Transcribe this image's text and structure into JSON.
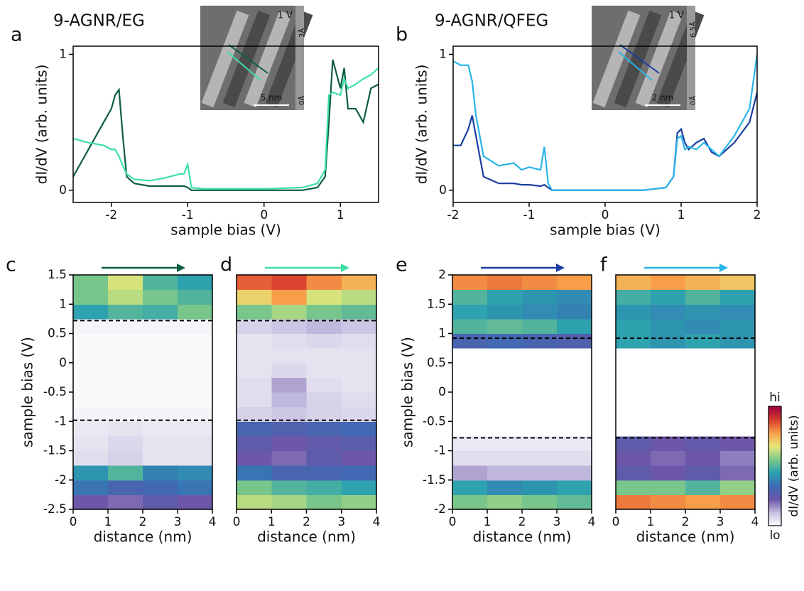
{
  "chart_data": [
    {
      "type": "line",
      "panel": "a",
      "title": "9-AGNR/EG",
      "xlabel": "sample bias (V)",
      "ylabel": "dI/dV (arb. units)",
      "inset_texts": {
        "bias": "1 V",
        "scale": "5 nm",
        "max": "3Å",
        "min": "0Å"
      },
      "x": [
        -2.5,
        -2.3,
        -2.1,
        -2.0,
        -1.95,
        -1.9,
        -1.85,
        -1.8,
        -1.7,
        -1.5,
        -1.3,
        -1.1,
        -1.05,
        -1.0,
        -0.95,
        -0.8,
        -0.5,
        0,
        0.5,
        0.7,
        0.8,
        0.85,
        0.9,
        1.0,
        1.05,
        1.1,
        1.2,
        1.3,
        1.4,
        1.5
      ],
      "series": [
        {
          "color": "#0d5c45",
          "values": [
            0.1,
            0.3,
            0.5,
            0.6,
            0.7,
            0.74,
            0.4,
            0.1,
            0.05,
            0.03,
            0.03,
            0.03,
            0.03,
            0.02,
            0.0,
            0.0,
            0.0,
            0.0,
            0.0,
            0.02,
            0.1,
            0.5,
            0.96,
            0.75,
            0.9,
            0.6,
            0.6,
            0.5,
            0.75,
            0.78
          ]
        },
        {
          "color": "#3ee0a4",
          "values": [
            0.38,
            0.35,
            0.33,
            0.3,
            0.3,
            0.25,
            0.18,
            0.12,
            0.08,
            0.07,
            0.09,
            0.12,
            0.12,
            0.19,
            0.02,
            0.01,
            0.01,
            0.01,
            0.02,
            0.05,
            0.15,
            0.7,
            0.72,
            0.7,
            0.82,
            0.75,
            0.78,
            0.82,
            0.85,
            0.9
          ]
        }
      ],
      "xlim": [
        -2.5,
        1.5
      ],
      "ylim": [
        -0.09,
        1.06
      ],
      "xticks": [
        -2,
        -1,
        0,
        1
      ],
      "yticks": [
        0,
        1
      ]
    },
    {
      "type": "line",
      "panel": "b",
      "title": "9-AGNR/QFEG",
      "xlabel": "sample bias (V)",
      "ylabel": "dI/dV (arb. units)",
      "inset_texts": {
        "bias": "1 V",
        "scale": "2 nm",
        "max": "6.5Å",
        "min": "0Å"
      },
      "x": [
        -2,
        -1.9,
        -1.8,
        -1.75,
        -1.7,
        -1.6,
        -1.4,
        -1.2,
        -1.1,
        -1.0,
        -0.85,
        -0.8,
        -0.75,
        -0.7,
        -0.5,
        0,
        0.5,
        0.8,
        0.9,
        0.95,
        1.0,
        1.05,
        1.1,
        1.2,
        1.3,
        1.4,
        1.5,
        1.7,
        1.9,
        2.0
      ],
      "series": [
        {
          "color": "#1a3fa0",
          "values": [
            0.33,
            0.33,
            0.45,
            0.55,
            0.4,
            0.1,
            0.05,
            0.05,
            0.04,
            0.04,
            0.03,
            0.04,
            0.02,
            0.0,
            0.0,
            0.0,
            0.0,
            0.02,
            0.1,
            0.42,
            0.45,
            0.35,
            0.3,
            0.35,
            0.38,
            0.28,
            0.25,
            0.35,
            0.5,
            0.72
          ]
        },
        {
          "color": "#2ab4e8",
          "values": [
            0.95,
            0.92,
            0.92,
            0.8,
            0.55,
            0.25,
            0.18,
            0.2,
            0.15,
            0.17,
            0.15,
            0.32,
            0.05,
            0.0,
            0.0,
            0.0,
            0.0,
            0.02,
            0.1,
            0.38,
            0.4,
            0.3,
            0.32,
            0.3,
            0.35,
            0.3,
            0.25,
            0.4,
            0.6,
            1.0
          ]
        }
      ],
      "xlim": [
        -2,
        2
      ],
      "ylim": [
        -0.09,
        1.06
      ],
      "xticks": [
        -2,
        -1,
        0,
        1,
        2
      ],
      "yticks": [
        0,
        1
      ]
    },
    {
      "type": "heatmap",
      "panel": "c",
      "xlabel": "distance (nm)",
      "ylabel": "sample bias (V)",
      "arrow_color": "#0d5c45",
      "xbins": [
        0,
        1,
        2,
        3,
        4
      ],
      "ybins": [
        -2.5,
        -2.25,
        -2,
        -1.75,
        -1.5,
        -1.25,
        -1,
        -0.75,
        -0.5,
        -0.25,
        0,
        0.25,
        0.5,
        0.75,
        1,
        1.25,
        1.5
      ],
      "z": [
        [
          0.22,
          0.2,
          0.25,
          0.22
        ],
        [
          0.35,
          0.3,
          0.32,
          0.35
        ],
        [
          0.42,
          0.5,
          0.38,
          0.4
        ],
        [
          0.06,
          0.08,
          0.05,
          0.05
        ],
        [
          0.05,
          0.07,
          0.05,
          0.05
        ],
        [
          0.04,
          0.05,
          0.04,
          0.04
        ],
        [
          0.02,
          0.02,
          0.02,
          0.02
        ],
        [
          0.01,
          0.01,
          0.01,
          0.01
        ],
        [
          0.01,
          0.01,
          0.01,
          0.01
        ],
        [
          0.01,
          0.01,
          0.01,
          0.01
        ],
        [
          0.01,
          0.01,
          0.01,
          0.01
        ],
        [
          0.01,
          0.01,
          0.01,
          0.01
        ],
        [
          0.02,
          0.02,
          0.02,
          0.02
        ],
        [
          0.45,
          0.5,
          0.48,
          0.55
        ],
        [
          0.55,
          0.62,
          0.55,
          0.5
        ],
        [
          0.55,
          0.65,
          0.5,
          0.45
        ]
      ],
      "hlines": [
        0.72,
        -0.98
      ],
      "xlim": [
        0,
        4
      ],
      "ylim": [
        -2.5,
        1.5
      ],
      "xticks": [
        0,
        1,
        2,
        3,
        4
      ],
      "yticks": [
        -2.5,
        -2,
        -1.5,
        -1,
        -0.5,
        0,
        0.5,
        1,
        1.5
      ]
    },
    {
      "type": "heatmap",
      "panel": "d",
      "xlabel": "distance (nm)",
      "arrow_color": "#3ee0a4",
      "xbins": [
        0,
        1,
        2,
        3,
        4
      ],
      "ybins": [
        -2.5,
        -2.25,
        -2,
        -1.75,
        -1.5,
        -1.25,
        -1,
        -0.75,
        -0.5,
        -0.25,
        0,
        0.25,
        0.5,
        0.75,
        1,
        1.25,
        1.5
      ],
      "z": [
        [
          0.62,
          0.6,
          0.55,
          0.58
        ],
        [
          0.55,
          0.5,
          0.48,
          0.45
        ],
        [
          0.35,
          0.3,
          0.3,
          0.32
        ],
        [
          0.22,
          0.2,
          0.25,
          0.22
        ],
        [
          0.25,
          0.22,
          0.24,
          0.26
        ],
        [
          0.3,
          0.28,
          0.3,
          0.32
        ],
        [
          0.08,
          0.1,
          0.08,
          0.07
        ],
        [
          0.06,
          0.12,
          0.08,
          0.06
        ],
        [
          0.06,
          0.14,
          0.06,
          0.05
        ],
        [
          0.05,
          0.07,
          0.05,
          0.05
        ],
        [
          0.05,
          0.05,
          0.05,
          0.05
        ],
        [
          0.05,
          0.06,
          0.07,
          0.06
        ],
        [
          0.08,
          0.1,
          0.12,
          0.1
        ],
        [
          0.55,
          0.6,
          0.55,
          0.52
        ],
        [
          0.7,
          0.78,
          0.65,
          0.62
        ],
        [
          0.85,
          0.88,
          0.8,
          0.75
        ]
      ],
      "hlines": [
        0.72,
        -0.98
      ],
      "xlim": [
        0,
        4
      ],
      "ylim": [
        -2.5,
        1.5
      ],
      "xticks": [
        0,
        1,
        2,
        3,
        4
      ]
    },
    {
      "type": "heatmap",
      "panel": "e",
      "xlabel": "distance (nm)",
      "ylabel": "sample bias (V)",
      "arrow_color": "#1a3fa0",
      "xbins": [
        0,
        1,
        2,
        3,
        4
      ],
      "ybins": [
        -2,
        -1.75,
        -1.5,
        -1.25,
        -1,
        -0.75,
        -0.5,
        -0.25,
        0,
        0.25,
        0.5,
        0.75,
        1,
        1.25,
        1.5,
        1.75,
        2
      ],
      "z": [
        [
          0.55,
          0.58,
          0.55,
          0.52
        ],
        [
          0.45,
          0.4,
          0.42,
          0.45
        ],
        [
          0.14,
          0.12,
          0.12,
          0.12
        ],
        [
          0.06,
          0.06,
          0.06,
          0.06
        ],
        [
          0.04,
          0.04,
          0.04,
          0.04
        ],
        [
          0.0,
          0.0,
          0.0,
          0.0
        ],
        [
          0.0,
          0.0,
          0.0,
          0.0
        ],
        [
          0.0,
          0.0,
          0.0,
          0.0
        ],
        [
          0.0,
          0.0,
          0.0,
          0.0
        ],
        [
          0.0,
          0.0,
          0.0,
          0.0
        ],
        [
          0.0,
          0.0,
          0.0,
          0.0
        ],
        [
          0.3,
          0.32,
          0.3,
          0.28
        ],
        [
          0.5,
          0.52,
          0.5,
          0.45
        ],
        [
          0.45,
          0.42,
          0.4,
          0.38
        ],
        [
          0.5,
          0.45,
          0.42,
          0.4
        ],
        [
          0.8,
          0.82,
          0.8,
          0.78
        ]
      ],
      "hlines": [
        0.92,
        -0.78
      ],
      "xlim": [
        0,
        4
      ],
      "ylim": [
        -2,
        2
      ],
      "xticks": [
        0,
        1,
        2,
        3,
        4
      ],
      "yticks": [
        -2,
        -1.5,
        -1,
        -0.5,
        0,
        0.5,
        1,
        1.5,
        2
      ]
    },
    {
      "type": "heatmap",
      "panel": "f",
      "xlabel": "distance (nm)",
      "arrow_color": "#2ab4e8",
      "xbins": [
        0,
        1,
        2,
        3,
        4
      ],
      "ybins": [
        -2,
        -1.75,
        -1.5,
        -1.25,
        -1,
        -0.75,
        -0.5,
        -0.25,
        0,
        0.25,
        0.5,
        0.75,
        1,
        1.25,
        1.5,
        1.75,
        2
      ],
      "z": [
        [
          0.82,
          0.8,
          0.78,
          0.8
        ],
        [
          0.55,
          0.55,
          0.5,
          0.58
        ],
        [
          0.25,
          0.22,
          0.25,
          0.2
        ],
        [
          0.22,
          0.2,
          0.22,
          0.18
        ],
        [
          0.25,
          0.22,
          0.24,
          0.22
        ],
        [
          0.0,
          0.0,
          0.0,
          0.0
        ],
        [
          0.0,
          0.0,
          0.0,
          0.0
        ],
        [
          0.0,
          0.0,
          0.0,
          0.0
        ],
        [
          0.0,
          0.0,
          0.0,
          0.0
        ],
        [
          0.0,
          0.0,
          0.0,
          0.0
        ],
        [
          0.0,
          0.0,
          0.0,
          0.0
        ],
        [
          0.45,
          0.42,
          0.45,
          0.42
        ],
        [
          0.45,
          0.42,
          0.4,
          0.42
        ],
        [
          0.42,
          0.4,
          0.42,
          0.4
        ],
        [
          0.48,
          0.45,
          0.5,
          0.45
        ],
        [
          0.75,
          0.78,
          0.75,
          0.72
        ]
      ],
      "hlines": [
        0.92,
        -0.78
      ],
      "xlim": [
        0,
        4
      ],
      "ylim": [
        -2,
        2
      ],
      "xticks": [
        0,
        1,
        2,
        3,
        4
      ]
    }
  ],
  "colorbar": {
    "label": "dI/dV (arb. units)",
    "hi": "hi",
    "lo": "lo",
    "colors": [
      "#ffffff",
      "#c7c0e0",
      "#6a55a8",
      "#3c6cb4",
      "#2aa0b0",
      "#7cc88a",
      "#e6e87a",
      "#f9a04a",
      "#d83c2c",
      "#9e0142"
    ]
  }
}
